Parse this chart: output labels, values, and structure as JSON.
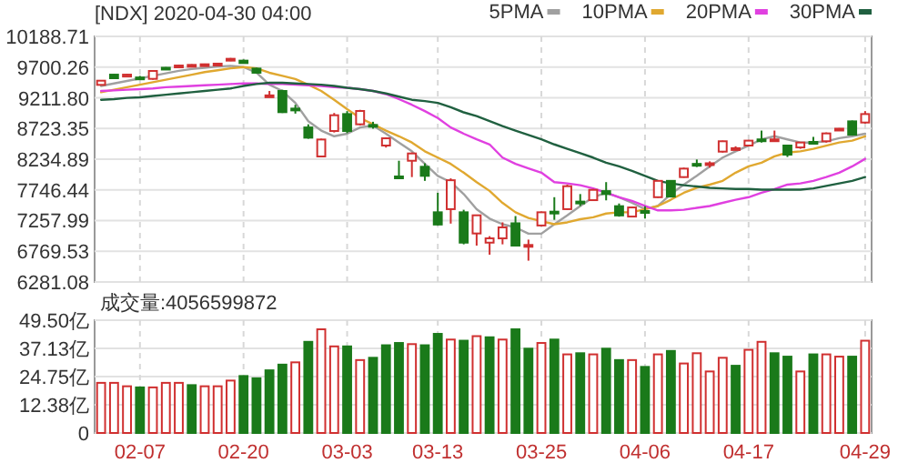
{
  "chart_data": [
    {
      "type": "candlestick",
      "title": "[NDX] 2020-04-30 04:00",
      "categories": [
        null,
        null,
        null,
        null,
        null,
        null,
        null,
        null,
        null,
        null,
        null,
        null,
        null,
        null,
        null,
        null,
        null,
        null,
        null,
        null,
        null,
        null,
        null,
        null,
        null,
        null,
        null,
        null,
        null,
        null,
        null,
        null,
        null,
        null,
        null,
        null,
        null,
        null,
        null,
        null,
        null,
        null,
        null,
        null,
        null,
        null,
        null,
        null,
        null,
        null,
        null,
        null,
        null,
        null,
        null,
        null,
        null,
        null,
        null,
        null
      ],
      "ohlc": [
        [
          9417,
          9494,
          9407,
          9484
        ],
        [
          9580,
          9590,
          9513,
          9523
        ],
        [
          9550,
          9590,
          9540,
          9580
        ],
        [
          9535,
          9560,
          9500,
          9520
        ],
        [
          9513,
          9650,
          9500,
          9639
        ],
        [
          9690,
          9700,
          9660,
          9670
        ],
        [
          9710,
          9740,
          9700,
          9725
        ],
        [
          9716,
          9745,
          9705,
          9735
        ],
        [
          9735,
          9755,
          9725,
          9745
        ],
        [
          9740,
          9765,
          9735,
          9755
        ],
        [
          9803,
          9845,
          9795,
          9832
        ],
        [
          9803,
          9820,
          9755,
          9764
        ],
        [
          9677,
          9690,
          9600,
          9610
        ],
        [
          9240,
          9320,
          9235,
          9250
        ],
        [
          9320,
          9340,
          8970,
          8983
        ],
        [
          9040,
          9100,
          8960,
          9030
        ],
        [
          8740,
          8790,
          8560,
          8577
        ],
        [
          8278,
          8560,
          8270,
          8548
        ],
        [
          8683,
          8970,
          8660,
          8934
        ],
        [
          8953,
          9000,
          8650,
          8683
        ],
        [
          8790,
          9020,
          8770,
          9002
        ],
        [
          8780,
          8830,
          8720,
          8770
        ],
        [
          8452,
          8580,
          8420,
          8567
        ],
        [
          7960,
          8210,
          7945,
          7950
        ],
        [
          8210,
          8340,
          7950,
          8326
        ],
        [
          8114,
          8170,
          7890,
          7970
        ],
        [
          7390,
          7700,
          7180,
          7195
        ],
        [
          7440,
          7930,
          7210,
          7900
        ],
        [
          7390,
          7430,
          6880,
          6907
        ],
        [
          7053,
          7350,
          6860,
          7342
        ],
        [
          6907,
          7010,
          6715,
          6975
        ],
        [
          6975,
          7230,
          6880,
          7150
        ],
        [
          7215,
          7330,
          6850,
          6860
        ],
        [
          6860,
          6955,
          6620,
          6870
        ],
        [
          7180,
          7400,
          7170,
          7390
        ],
        [
          7400,
          7630,
          7270,
          7390
        ],
        [
          7440,
          7830,
          7430,
          7805
        ],
        [
          7560,
          7680,
          7490,
          7550
        ],
        [
          7583,
          7760,
          7570,
          7747
        ],
        [
          7727,
          7870,
          7580,
          7680
        ],
        [
          7487,
          7530,
          7320,
          7340
        ],
        [
          7322,
          7480,
          7310,
          7467
        ],
        [
          7410,
          7487,
          7290,
          7400
        ],
        [
          7630,
          7900,
          7620,
          7890
        ],
        [
          7890,
          7900,
          7630,
          7640
        ],
        [
          7950,
          8100,
          7940,
          8085
        ],
        [
          8160,
          8230,
          8110,
          8150
        ],
        [
          8150,
          8200,
          8100,
          8170
        ],
        [
          8355,
          8530,
          8340,
          8520
        ],
        [
          8400,
          8440,
          8390,
          8410
        ],
        [
          8452,
          8540,
          8440,
          8530
        ],
        [
          8550,
          8690,
          8500,
          8540
        ],
        [
          8530,
          8690,
          8520,
          8550
        ],
        [
          8452,
          8460,
          8270,
          8307
        ],
        [
          8422,
          8510,
          8400,
          8500
        ],
        [
          8510,
          8590,
          8490,
          8500
        ],
        [
          8520,
          8660,
          8500,
          8645
        ],
        [
          8710,
          8730,
          8700,
          8720
        ],
        [
          8837,
          8850,
          8610,
          8625
        ],
        [
          8818,
          9000,
          8800,
          8953
        ]
      ],
      "series": [
        {
          "name": "5PMA",
          "type": "line",
          "color": "#a0a0a0",
          "values": [
            9400,
            9440,
            9480,
            9520,
            9560,
            9600,
            9640,
            9670,
            9690,
            9710,
            9720,
            9700,
            9610,
            9420,
            9320,
            9130,
            8840,
            8690,
            8600,
            8640,
            8740,
            8770,
            8640,
            8500,
            8360,
            8160,
            7970,
            7870,
            7680,
            7440,
            7290,
            7200,
            7150,
            7050,
            7050,
            7200,
            7340,
            7490,
            7630,
            7700,
            7630,
            7540,
            7440,
            7490,
            7680,
            7830,
            7970,
            8120,
            8260,
            8360,
            8450,
            8550,
            8600,
            8550,
            8500,
            8500,
            8520,
            8570,
            8600,
            8640
          ]
        },
        {
          "name": "10PMA",
          "type": "line",
          "color": "#e0a830",
          "values": [
            9300,
            9340,
            9380,
            9420,
            9460,
            9500,
            9540,
            9580,
            9620,
            9650,
            9680,
            9700,
            9680,
            9610,
            9560,
            9510,
            9420,
            9320,
            9180,
            9030,
            8890,
            8790,
            8690,
            8600,
            8500,
            8360,
            8260,
            8160,
            8020,
            7870,
            7730,
            7540,
            7390,
            7300,
            7250,
            7200,
            7230,
            7280,
            7310,
            7370,
            7390,
            7390,
            7440,
            7490,
            7590,
            7700,
            7780,
            7830,
            7890,
            8020,
            8120,
            8180,
            8280,
            8340,
            8360,
            8400,
            8450,
            8500,
            8530,
            8600
          ]
        },
        {
          "name": "20PMA",
          "type": "line",
          "color": "#e040e0",
          "values": [
            9320,
            9330,
            9340,
            9350,
            9360,
            9380,
            9390,
            9400,
            9410,
            9420,
            9430,
            9440,
            9440,
            9430,
            9430,
            9420,
            9410,
            9400,
            9380,
            9370,
            9350,
            9320,
            9270,
            9190,
            9100,
            9000,
            8890,
            8740,
            8640,
            8550,
            8470,
            8260,
            8160,
            8090,
            8020,
            7870,
            7850,
            7820,
            7770,
            7700,
            7630,
            7570,
            7490,
            7420,
            7420,
            7430,
            7460,
            7490,
            7540,
            7590,
            7630,
            7700,
            7760,
            7830,
            7850,
            7890,
            7950,
            8020,
            8120,
            8240
          ]
        },
        {
          "name": "30PMA",
          "type": "line",
          "color": "#206040",
          "values": [
            9180,
            9190,
            9210,
            9220,
            9240,
            9260,
            9280,
            9300,
            9320,
            9340,
            9360,
            9400,
            9430,
            9450,
            9450,
            9440,
            9430,
            9420,
            9400,
            9370,
            9350,
            9320,
            9280,
            9230,
            9180,
            9160,
            9130,
            9060,
            8980,
            8920,
            8840,
            8760,
            8690,
            8620,
            8550,
            8470,
            8400,
            8330,
            8260,
            8180,
            8120,
            8050,
            7970,
            7890,
            7850,
            7820,
            7800,
            7780,
            7770,
            7760,
            7760,
            7750,
            7750,
            7750,
            7750,
            7770,
            7810,
            7850,
            7890,
            7950
          ]
        }
      ],
      "ylim": [
        6281.08,
        10188.71
      ],
      "yticks": [
        10188.71,
        9700.26,
        {
          "value": 9211.8,
          "label": "9211.80"
        },
        8723.35,
        8234.89,
        7746.44,
        7257.99,
        6769.53,
        6281.08
      ],
      "tick_labels": "y",
      "grid": true,
      "legend": "top right"
    },
    {
      "type": "bar",
      "title": "成交量:4056599872",
      "categories": [
        null,
        null,
        null,
        "02-07",
        null,
        null,
        null,
        null,
        null,
        null,
        null,
        "02-20",
        null,
        null,
        null,
        null,
        null,
        null,
        null,
        "03-03",
        null,
        null,
        null,
        null,
        null,
        null,
        "03-13",
        null,
        null,
        null,
        null,
        null,
        null,
        null,
        "03-25",
        null,
        null,
        null,
        null,
        null,
        null,
        null,
        "04-06",
        null,
        null,
        null,
        null,
        null,
        null,
        null,
        "04-17",
        null,
        null,
        null,
        null,
        null,
        null,
        null,
        null,
        "04-29"
      ],
      "values": [
        22,
        22,
        20.5,
        20,
        20,
        22,
        22,
        21,
        20.5,
        20.5,
        23,
        25,
        24,
        27.5,
        30,
        31,
        40,
        45.5,
        38,
        38,
        32,
        33,
        38.5,
        39.5,
        39,
        38.5,
        43.5,
        41,
        40.5,
        42.5,
        42,
        41,
        45.5,
        37,
        39.5,
        41,
        34.5,
        35,
        34.5,
        37,
        32,
        32,
        29,
        34.5,
        36,
        30.5,
        35,
        27,
        33,
        29.5,
        36.5,
        40,
        35,
        33.5,
        27,
        34.5,
        34.5,
        33.5,
        33.5,
        40.5
      ],
      "colors": [
        "#d03030",
        "#d03030",
        "#d03030",
        "#1a7a1a",
        "#d03030",
        "#d03030",
        "#d03030",
        "#1a7a1a",
        "#d03030",
        "#d03030",
        "#d03030",
        "#1a7a1a",
        "#1a7a1a",
        "#1a7a1a",
        "#1a7a1a",
        "#d03030",
        "#1a7a1a",
        "#d03030",
        "#d03030",
        "#1a7a1a",
        "#d03030",
        "#1a7a1a",
        "#1a7a1a",
        "#1a7a1a",
        "#d03030",
        "#1a7a1a",
        "#1a7a1a",
        "#d03030",
        "#1a7a1a",
        "#d03030",
        "#1a7a1a",
        "#d03030",
        "#1a7a1a",
        "#1a7a1a",
        "#d03030",
        "#1a7a1a",
        "#d03030",
        "#1a7a1a",
        "#d03030",
        "#1a7a1a",
        "#1a7a1a",
        "#d03030",
        "#1a7a1a",
        "#d03030",
        "#1a7a1a",
        "#d03030",
        "#d03030",
        "#d03030",
        "#d03030",
        "#1a7a1a",
        "#d03030",
        "#d03030",
        "#1a7a1a",
        "#1a7a1a",
        "#d03030",
        "#1a7a1a",
        "#d03030",
        "#d03030",
        "#1a7a1a",
        "#d03030"
      ],
      "ylim": [
        0,
        49.5
      ],
      "yticks": [
        {
          "value": 49.5,
          "label": "49.50亿"
        },
        {
          "value": 37.13,
          "label": "37.13亿"
        },
        {
          "value": 24.75,
          "label": "24.75亿"
        },
        {
          "value": 12.38,
          "label": "12.38亿"
        },
        0
      ],
      "grid": true
    }
  ]
}
